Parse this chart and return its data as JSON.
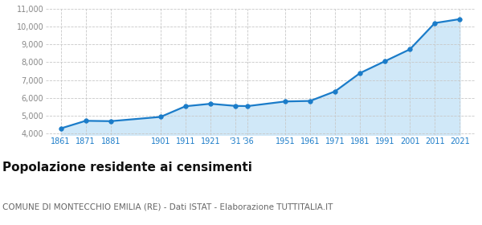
{
  "years": [
    1861,
    1871,
    1881,
    1901,
    1911,
    1921,
    1931,
    1936,
    1951,
    1961,
    1971,
    1981,
    1991,
    2001,
    2011,
    2021
  ],
  "x_labels": [
    "1861",
    "1871",
    "1881",
    "1901",
    "1911",
    "1921",
    "'31",
    "'36",
    "1951",
    "1961",
    "1971",
    "1981",
    "1991",
    "2001",
    "2011",
    "2021"
  ],
  "population": [
    4270,
    4700,
    4680,
    4920,
    5520,
    5660,
    5540,
    5530,
    5790,
    5820,
    6360,
    7390,
    8060,
    8730,
    10210,
    10430
  ],
  "line_color": "#1b7cc9",
  "fill_color": "#d0e8f8",
  "marker_color": "#1b7cc9",
  "marker_size": 4,
  "ylim": [
    3900,
    11000
  ],
  "yticks": [
    4000,
    5000,
    6000,
    7000,
    8000,
    9000,
    10000,
    11000
  ],
  "ytick_labels": [
    "4,000",
    "5,000",
    "6,000",
    "7,000",
    "8,000",
    "9,000",
    "10,000",
    "11,000"
  ],
  "background_color": "#ffffff",
  "grid_color": "#c8c8c8",
  "title": "Popolazione residente ai censimenti",
  "subtitle": "COMUNE DI MONTECCHIO EMILIA (RE) - Dati ISTAT - Elaborazione TUTTITALIA.IT",
  "title_fontsize": 11,
  "subtitle_fontsize": 7.5,
  "xtick_color": "#1b7cc9",
  "ytick_color": "#888888"
}
